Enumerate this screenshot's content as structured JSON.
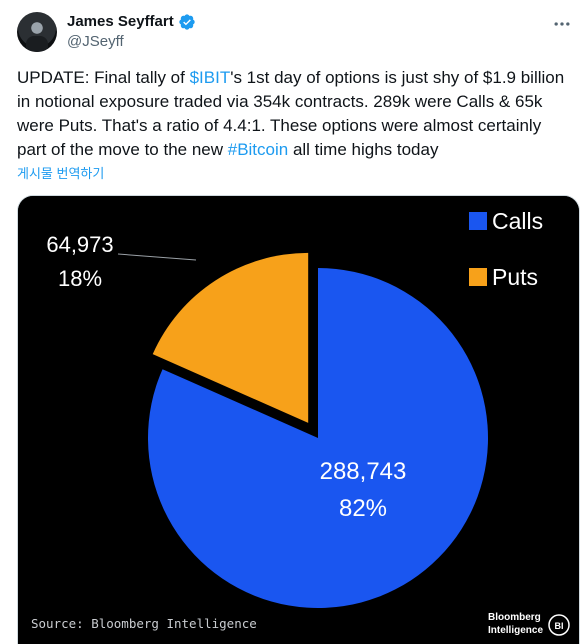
{
  "author": {
    "display_name": "James Seyffart",
    "handle": "@JSeyff",
    "verified": true,
    "verified_color": "#1d9bf0"
  },
  "tweet": {
    "part1": "UPDATE: Final tally of ",
    "ticker": "$IBIT",
    "part2": "'s 1st day of options is just shy of $1.9 billion in notional exposure traded via 354k contracts. 289k were Calls & 65k were Puts. That's a ratio of 4.4:1. These options were almost certainly part of the move to the new ",
    "hashtag": "#Bitcoin",
    "part3": " all time highs today",
    "translate_label": "게시물 번역하기"
  },
  "more_icon": "more-horizontal-icon",
  "chart_data": {
    "type": "pie",
    "background": "#000000",
    "series": [
      {
        "name": "Calls",
        "value": 288743,
        "value_label": "288,743",
        "percent_label": "82%",
        "color": "#1a56f0"
      },
      {
        "name": "Puts",
        "value": 64973,
        "value_label": "64,973",
        "percent_label": "18%",
        "color": "#f7a11a"
      }
    ],
    "legend_position": "top-right",
    "source": "Source: Bloomberg Intelligence",
    "logo_text_1": "Bloomberg",
    "logo_text_2": "Intelligence",
    "logo_badge": "BI"
  }
}
